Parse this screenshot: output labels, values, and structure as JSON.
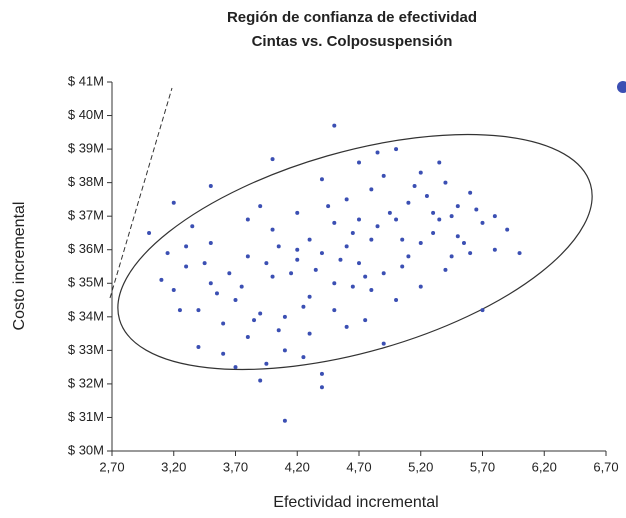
{
  "chart_data": {
    "type": "scatter",
    "title": "Región de confianza de efectividad",
    "subtitle": "Cintas vs. Colposuspensión",
    "x_label": "Efectividad incremental",
    "y_label": "Costo incremental",
    "color": "#3b4fb3",
    "x": [
      3.1,
      3.2,
      3.3,
      3.0,
      3.2,
      3.4,
      3.5,
      3.6,
      3.7,
      3.8,
      3.5,
      3.4,
      3.6,
      3.7,
      3.8,
      3.9,
      3.9,
      4.0,
      4.0,
      4.1,
      4.1,
      4.2,
      4.2,
      4.3,
      4.3,
      4.3,
      4.4,
      4.4,
      4.4,
      4.4,
      4.5,
      4.5,
      4.5,
      4.6,
      4.6,
      4.6,
      4.7,
      4.7,
      4.7,
      4.8,
      4.8,
      4.8,
      4.9,
      4.9,
      4.9,
      5.0,
      5.0,
      5.0,
      5.1,
      5.1,
      5.2,
      5.2,
      5.2,
      5.3,
      5.3,
      5.4,
      5.4,
      5.5,
      5.5,
      5.6,
      5.6,
      5.7,
      5.7,
      5.8,
      5.8,
      5.9,
      6.0,
      4.1,
      4.5,
      4.0,
      3.9,
      3.3,
      3.5,
      3.8,
      4.2,
      4.35,
      4.55,
      4.65,
      4.75,
      4.85,
      4.95,
      5.05,
      5.15,
      5.25,
      5.35,
      5.45,
      3.25,
      3.45,
      3.65,
      3.75,
      3.85,
      3.95,
      4.05,
      4.15,
      4.25,
      4.45,
      4.65,
      4.85,
      5.35,
      5.55,
      5.65,
      3.15,
      3.35,
      3.55,
      4.05,
      4.75,
      5.05,
      5.45,
      4.25,
      3.95
    ],
    "values": [
      35.1,
      34.8,
      35.5,
      36.5,
      37.4,
      34.2,
      35.0,
      33.8,
      34.5,
      35.8,
      36.2,
      33.1,
      32.9,
      32.5,
      33.4,
      34.1,
      32.1,
      36.6,
      35.2,
      34.0,
      33.0,
      35.7,
      37.1,
      36.3,
      34.6,
      33.5,
      35.9,
      38.1,
      32.3,
      31.9,
      36.8,
      35.0,
      34.2,
      37.5,
      36.1,
      33.7,
      35.6,
      38.6,
      36.9,
      34.8,
      37.8,
      36.3,
      35.3,
      38.2,
      33.2,
      36.9,
      39.0,
      34.5,
      37.4,
      35.8,
      38.3,
      36.2,
      34.9,
      37.1,
      36.5,
      38.0,
      35.4,
      37.3,
      36.4,
      37.7,
      35.9,
      36.8,
      34.2,
      37.0,
      36.0,
      36.6,
      35.9,
      30.9,
      39.7,
      38.7,
      37.3,
      36.1,
      37.9,
      36.9,
      36.0,
      35.4,
      35.7,
      34.9,
      35.2,
      36.7,
      37.1,
      36.3,
      37.9,
      37.6,
      36.9,
      37.0,
      34.2,
      35.6,
      35.3,
      34.9,
      33.9,
      35.6,
      36.1,
      35.3,
      34.3,
      37.3,
      36.5,
      38.9,
      38.6,
      36.2,
      37.2,
      35.9,
      36.7,
      34.7,
      33.6,
      33.9,
      35.5,
      35.8,
      32.8,
      32.6
    ],
    "xlim": [
      2.7,
      6.7
    ],
    "xticks": [
      {
        "value": 2.7,
        "label": "2,70"
      },
      {
        "value": 3.2,
        "label": "3,20"
      },
      {
        "value": 3.7,
        "label": "3,70"
      },
      {
        "value": 4.2,
        "label": "4,20"
      },
      {
        "value": 4.7,
        "label": "4,70"
      },
      {
        "value": 5.2,
        "label": "5,20"
      },
      {
        "value": 5.7,
        "label": "5,70"
      },
      {
        "value": 6.2,
        "label": "6,20"
      },
      {
        "value": 6.7,
        "label": "6,70"
      }
    ],
    "ylim": [
      30,
      41
    ],
    "yticks": [
      {
        "value": 30,
        "label": "$ 30M"
      },
      {
        "value": 31,
        "label": "$ 31M"
      },
      {
        "value": 32,
        "label": "$ 32M"
      },
      {
        "value": 33,
        "label": "$ 33M"
      },
      {
        "value": 34,
        "label": "$ 34M"
      },
      {
        "value": 35,
        "label": "$ 35M"
      },
      {
        "value": 36,
        "label": "$ 36M"
      },
      {
        "value": 37,
        "label": "$ 37M"
      },
      {
        "value": 38,
        "label": "$ 38M"
      },
      {
        "value": 39,
        "label": "$ 39M"
      },
      {
        "value": 40,
        "label": "$ 40M"
      },
      {
        "value": 41,
        "label": "$ 41M"
      }
    ]
  }
}
